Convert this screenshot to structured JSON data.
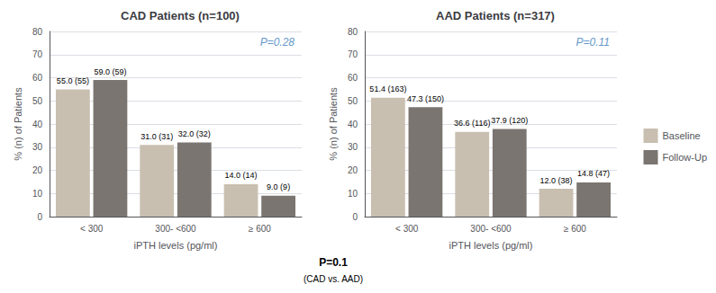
{
  "chart_data": [
    {
      "type": "bar",
      "title": "CAD Patients (n=100)",
      "xlabel": "iPTH levels (pg/ml)",
      "ylabel": "% (n) of Patients",
      "categories": [
        "< 300",
        "300- <600",
        "≥ 600"
      ],
      "series": [
        {
          "name": "Baseline",
          "color": "#c8bfb0",
          "values": [
            55.0,
            31.0,
            14.0
          ],
          "value_labels": [
            "55.0 (55)",
            "31.0 (31)",
            "14.0 (14)"
          ]
        },
        {
          "name": "Follow-Up",
          "color": "#7a7570",
          "values": [
            59.0,
            32.0,
            9.0
          ],
          "value_labels": [
            "59.0 (59)",
            "32.0 (32)",
            "9.0 (9)"
          ]
        }
      ],
      "ylim": [
        0,
        80
      ],
      "yticks": [
        0,
        10,
        20,
        30,
        40,
        50,
        60,
        70,
        80
      ],
      "grid": true,
      "legend": "right",
      "data_labels": true,
      "annotations": [
        "P=0.28"
      ]
    },
    {
      "type": "bar",
      "title": "AAD Patients (n=317)",
      "xlabel": "iPTH levels (pg/ml)",
      "ylabel": "% (n) of Patients",
      "categories": [
        "< 300",
        "300- <600",
        "≥ 600"
      ],
      "series": [
        {
          "name": "Baseline",
          "color": "#c8bfb0",
          "values": [
            51.4,
            36.6,
            12.0
          ],
          "value_labels": [
            "51.4 (163)",
            "36.6 (116)",
            "12.0 (38)"
          ]
        },
        {
          "name": "Follow-Up",
          "color": "#7a7570",
          "values": [
            47.3,
            37.9,
            14.8
          ],
          "value_labels": [
            "47.3 (150)",
            "37.9 (120)",
            "14.8 (47)"
          ]
        }
      ],
      "ylim": [
        0,
        80
      ],
      "yticks": [
        0,
        10,
        20,
        30,
        40,
        50,
        60,
        70,
        80
      ],
      "grid": true,
      "legend": "right",
      "data_labels": true,
      "annotations": [
        "P=0.11"
      ]
    }
  ],
  "annotations": [
    "P=0.1",
    "(CAD vs. AAD)"
  ]
}
